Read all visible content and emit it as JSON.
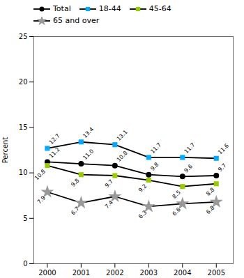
{
  "chart_data": {
    "type": "line",
    "x": [
      2000,
      2001,
      2002,
      2003,
      2004,
      2005
    ],
    "series": [
      {
        "name": "Total",
        "color": "#000000",
        "marker": "circle",
        "values": [
          11.2,
          11.0,
          10.8,
          9.8,
          9.6,
          9.7
        ],
        "value_labels": [
          "11.2",
          "11.0",
          "10.8",
          "9.8",
          "9.6",
          "9.7"
        ]
      },
      {
        "name": "18-44",
        "color": "#00aaff",
        "marker": "square",
        "values": [
          12.7,
          13.4,
          13.1,
          11.7,
          11.7,
          11.6
        ],
        "value_labels": [
          "12.7",
          "13.4",
          "13.1",
          "11.7",
          "11.7",
          "11.6"
        ]
      },
      {
        "name": "45-64",
        "color": "#99cc00",
        "marker": "square",
        "values": [
          10.8,
          9.8,
          9.7,
          9.2,
          8.5,
          8.8
        ],
        "value_labels": [
          "10.8",
          "9.8",
          "9.7",
          "9.2",
          "8.5",
          "8.8"
        ]
      },
      {
        "name": "65 and over",
        "color": "#999999",
        "marker": "star",
        "values": [
          7.9,
          6.7,
          7.4,
          6.3,
          6.6,
          6.8
        ],
        "value_labels": [
          "7.9",
          "6.7",
          "7.4",
          "6.3",
          "6.6",
          "6.8"
        ]
      }
    ],
    "color": "#000000",
    "ylabel": "Percent",
    "ylim": [
      0,
      25
    ],
    "yticks": [
      0,
      5,
      10,
      15,
      20,
      25
    ],
    "xlim": [
      1999.6,
      2005.5
    ],
    "xticks": [
      2000,
      2001,
      2002,
      2003,
      2004,
      2005
    ],
    "grid": false,
    "legend": "upper left",
    "data_labels": true
  }
}
